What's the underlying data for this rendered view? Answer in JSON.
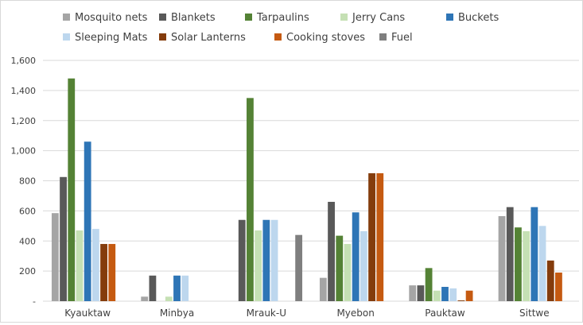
{
  "chart_data": {
    "type": "bar",
    "categories": [
      "Kyauktaw",
      "Minbya",
      "Mrauk-U",
      "Myebon",
      "Pauktaw",
      "Sittwe"
    ],
    "ylim": [
      0,
      1600
    ],
    "yticks": [
      0,
      200,
      400,
      600,
      800,
      1000,
      1200,
      1400,
      1600
    ],
    "ytick_labels": [
      "-",
      "200",
      "400",
      "600",
      "800",
      "1,000",
      "1,200",
      "1,400",
      "1,600"
    ],
    "grid": true,
    "legend_position": "top",
    "series": [
      {
        "name": "Mosquito nets",
        "color": "#a5a5a5",
        "values": [
          585,
          30,
          0,
          155,
          105,
          565
        ]
      },
      {
        "name": "Blankets",
        "color": "#595959",
        "values": [
          825,
          170,
          540,
          660,
          105,
          625
        ]
      },
      {
        "name": "Tarpaulins",
        "color": "#548235",
        "values": [
          1480,
          0,
          1350,
          435,
          220,
          490
        ]
      },
      {
        "name": "Jerry Cans",
        "color": "#c5e0b4",
        "values": [
          470,
          30,
          470,
          380,
          70,
          465
        ]
      },
      {
        "name": "Buckets",
        "color": "#2e75b6",
        "values": [
          1060,
          170,
          540,
          590,
          95,
          625
        ]
      },
      {
        "name": "Sleeping Mats",
        "color": "#bdd7ee",
        "values": [
          480,
          170,
          540,
          465,
          85,
          500
        ]
      },
      {
        "name": "Solar Lanterns",
        "color": "#843c0c",
        "values": [
          380,
          0,
          0,
          850,
          5,
          270
        ]
      },
      {
        "name": "Cooking stoves",
        "color": "#c55a11",
        "values": [
          380,
          0,
          0,
          850,
          70,
          190
        ]
      },
      {
        "name": "Fuel",
        "color": "#7f7f7f",
        "values": [
          0,
          0,
          440,
          0,
          0,
          0
        ]
      }
    ]
  }
}
